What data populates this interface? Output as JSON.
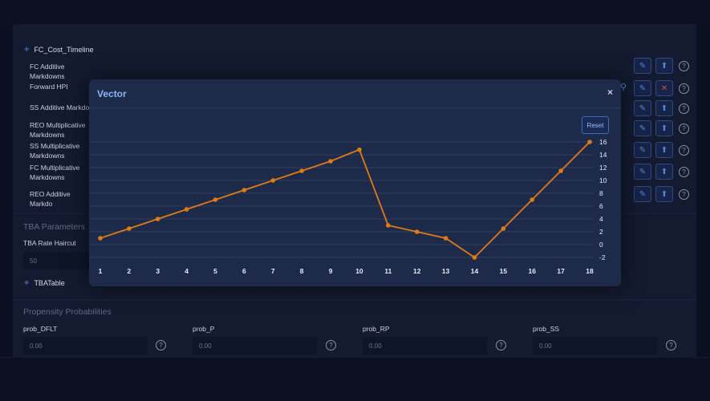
{
  "tree": {
    "header": "FC_Cost_Timeline",
    "rows": [
      {
        "label": "FC Additive Markdowns"
      },
      {
        "label": "Forward HPI"
      },
      {
        "label": "SS Additive Markdo"
      },
      {
        "label": "REO Multiplicative Markdowns"
      },
      {
        "label": "SS Multiplicative Markdowns"
      },
      {
        "label": "FC Multiplicative Markdowns"
      },
      {
        "label": "REO Additive Markdo"
      }
    ]
  },
  "tba": {
    "section_title": "TBA Parameters",
    "rate_label": "TBA Rate Haircut",
    "rate_value": "50",
    "table_label": "TBATable"
  },
  "propensity": {
    "section_title": "Propensity Probabilities",
    "fields": [
      {
        "label": "prob_DFLT",
        "value": "0.00"
      },
      {
        "label": "prob_P",
        "value": "0.00"
      },
      {
        "label": "prob_RP",
        "value": "0.00"
      },
      {
        "label": "prob_SS",
        "value": "0.00"
      }
    ]
  },
  "icons": {
    "tag": "tag-icon",
    "upload": "upload-icon",
    "edit": "pencil-icon",
    "delete": "close-icon",
    "help": "help-icon",
    "search": "search-icon"
  },
  "modal": {
    "title": "Vector",
    "close_glyph": "×",
    "reset_label": "Reset"
  },
  "colors": {
    "accent": "#e07b12",
    "title_blue": "#8ab6f5",
    "button_border": "#2c4a86"
  },
  "chart_data": {
    "type": "line",
    "x": [
      1,
      2,
      3,
      4,
      5,
      6,
      7,
      8,
      9,
      10,
      11,
      12,
      13,
      14,
      15,
      16,
      17,
      18
    ],
    "series": [
      {
        "values": [
          1,
          2.5,
          4,
          5.5,
          7,
          8.5,
          10,
          11.5,
          13,
          14.8,
          3,
          2,
          1,
          -2,
          2.5,
          7,
          11.5,
          16
        ]
      }
    ],
    "yticks": [
      16,
      14,
      12,
      10,
      8,
      6,
      4,
      2,
      0,
      -2
    ],
    "ylim": [
      -2,
      16
    ],
    "grid": true,
    "y_axis_side": "right"
  }
}
